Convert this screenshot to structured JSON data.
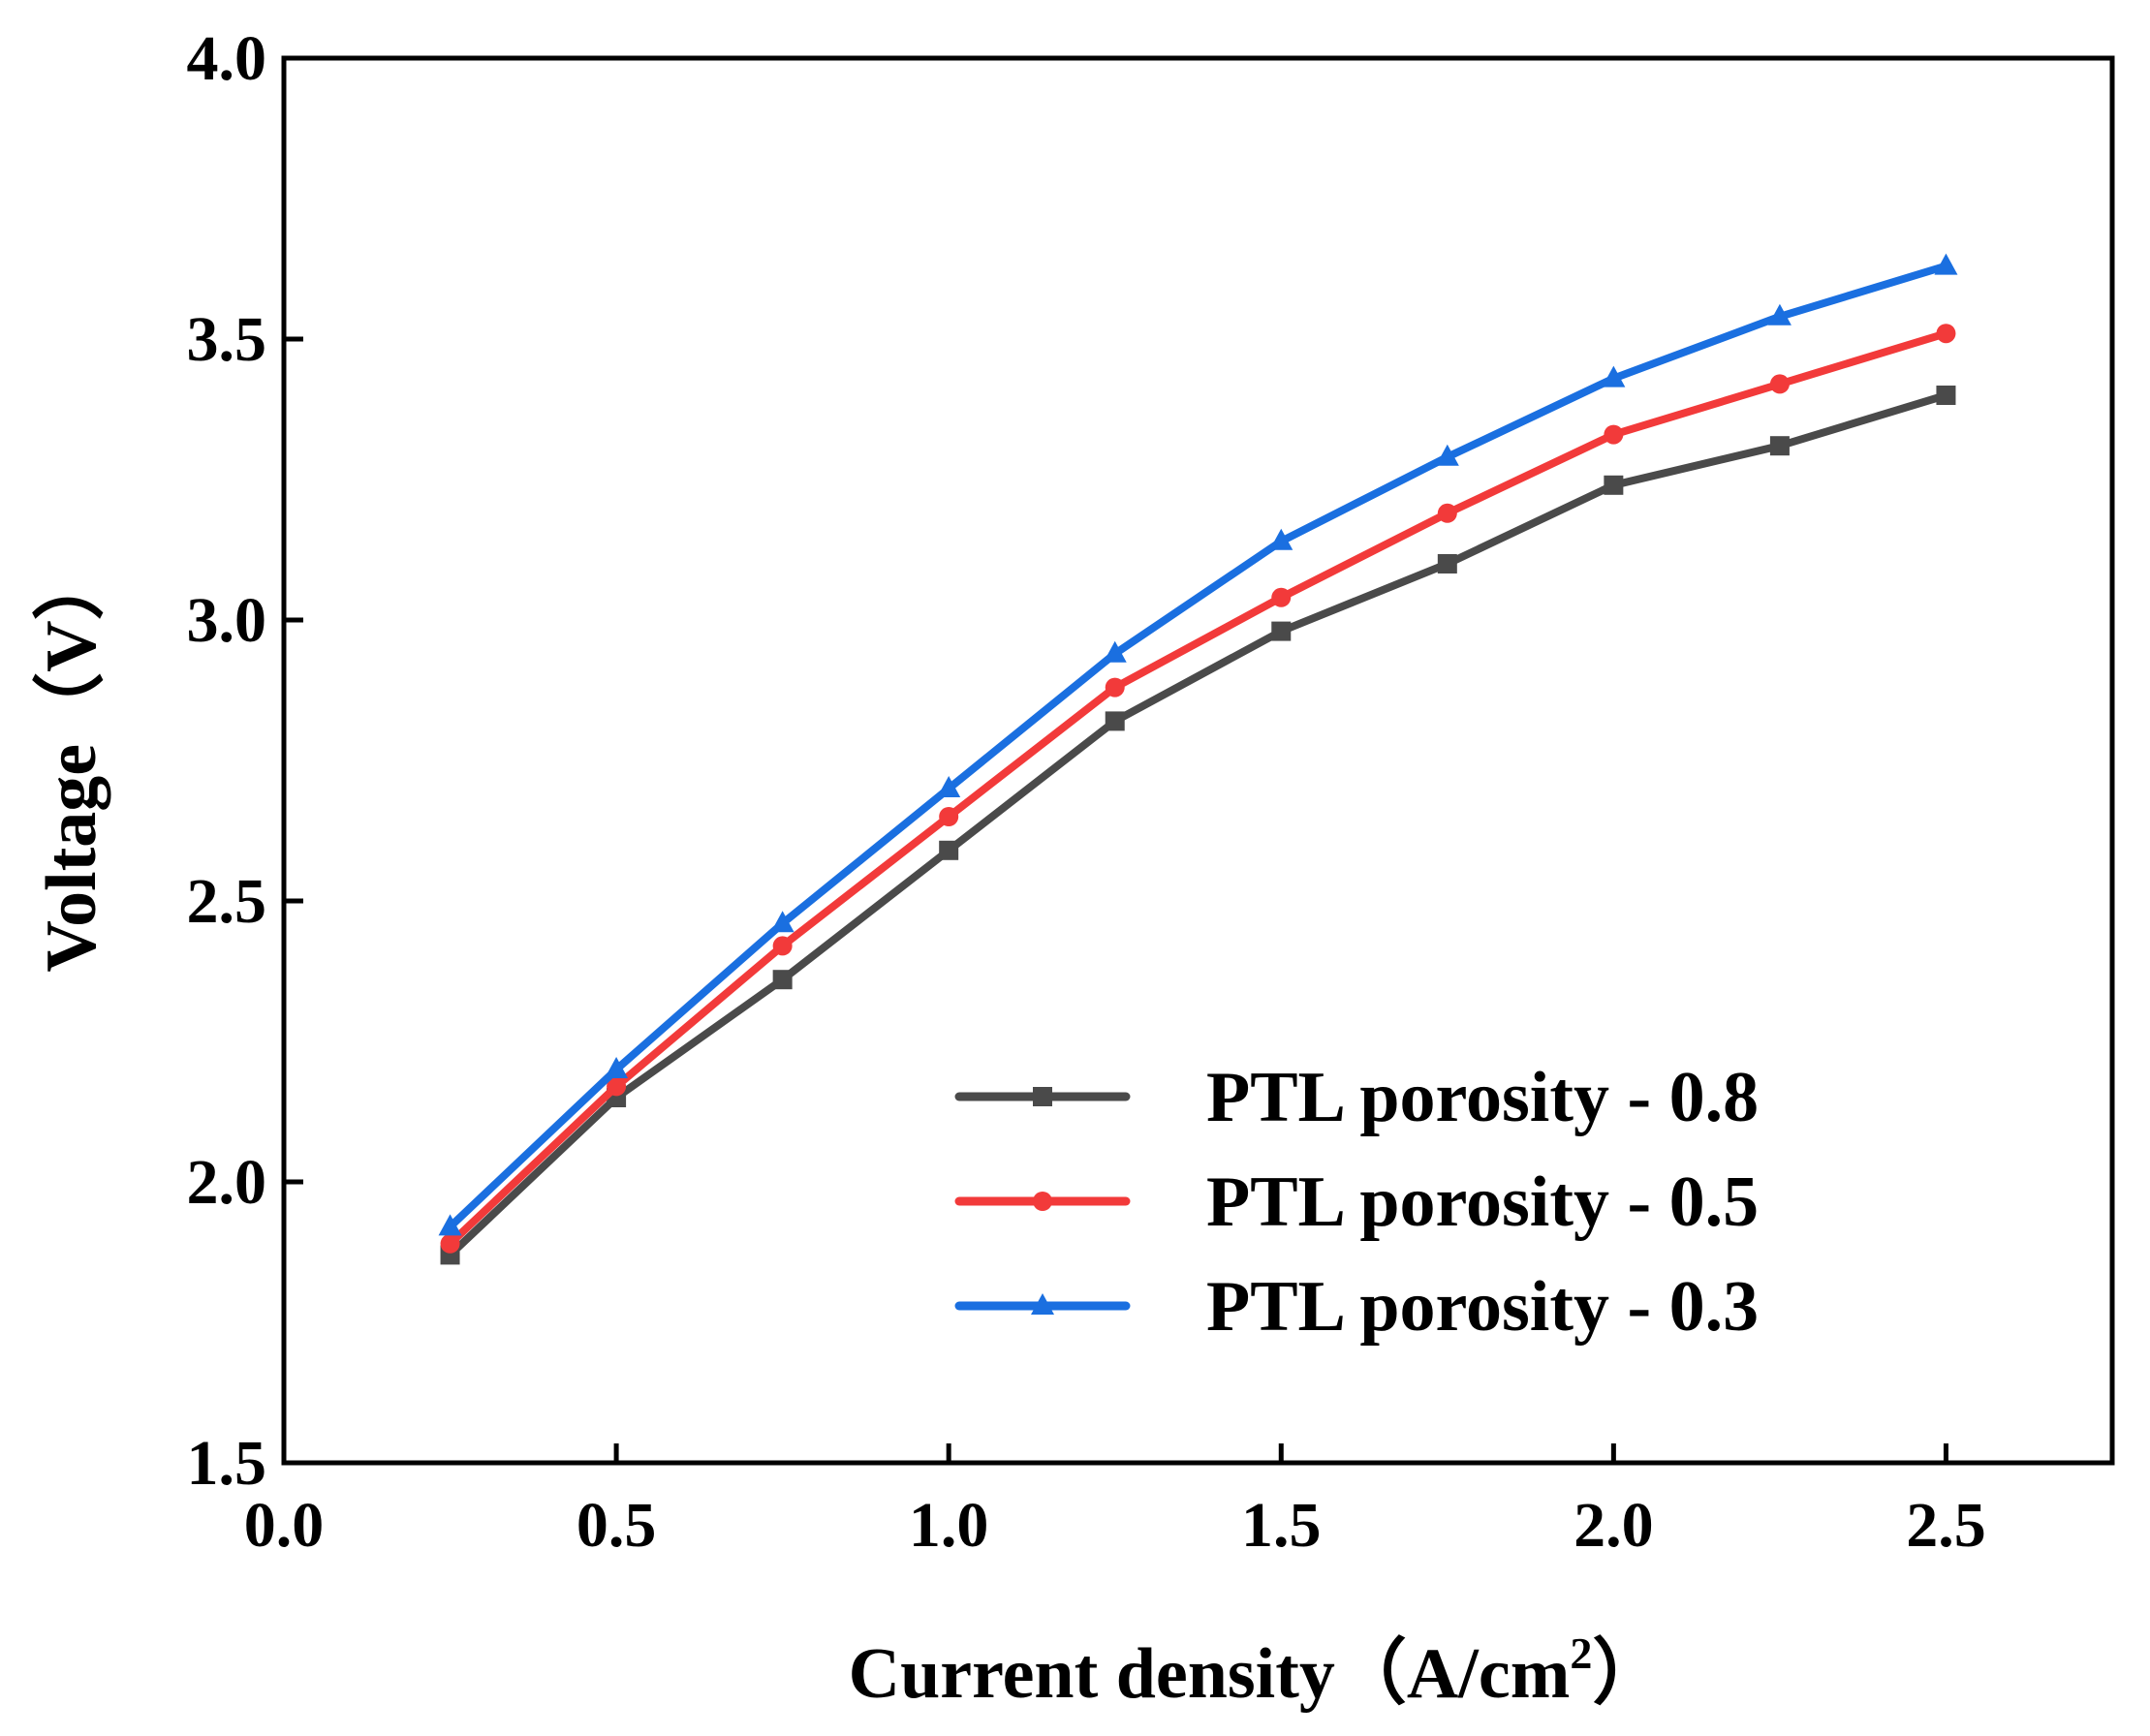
{
  "chart_data": {
    "type": "line",
    "title": "",
    "xlabel": {
      "main": "Current density（A/cm",
      "sup": "2",
      "end": "）"
    },
    "ylabel": "Voltage（V）",
    "xlim": [
      0.0,
      2.75
    ],
    "ylim": [
      1.5,
      4.0
    ],
    "xticks": [
      "0.0",
      "0.5",
      "1.0",
      "1.5",
      "2.0",
      "2.5"
    ],
    "yticks": [
      "1.5",
      "2.0",
      "2.5",
      "3.0",
      "3.5",
      "4.0"
    ],
    "grid": false,
    "legend_position": "bottom-right",
    "x": [
      0.25,
      0.5,
      0.75,
      1.0,
      1.25,
      1.5,
      1.75,
      2.0,
      2.25,
      2.5
    ],
    "series": [
      {
        "name": "PTL porosity - 0.8",
        "color": "#4a4a4a",
        "marker": "square",
        "values": [
          1.87,
          2.15,
          2.36,
          2.59,
          2.82,
          2.98,
          3.1,
          3.24,
          3.31,
          3.4
        ]
      },
      {
        "name": "PTL porosity - 0.5",
        "color": "#f23a3a",
        "marker": "circle",
        "values": [
          1.89,
          2.17,
          2.42,
          2.65,
          2.88,
          3.04,
          3.19,
          3.33,
          3.42,
          3.51
        ]
      },
      {
        "name": "PTL porosity - 0.3",
        "color": "#1a6fe0",
        "marker": "triangle",
        "values": [
          1.92,
          2.2,
          2.46,
          2.7,
          2.94,
          3.14,
          3.29,
          3.43,
          3.54,
          3.63
        ]
      }
    ]
  }
}
